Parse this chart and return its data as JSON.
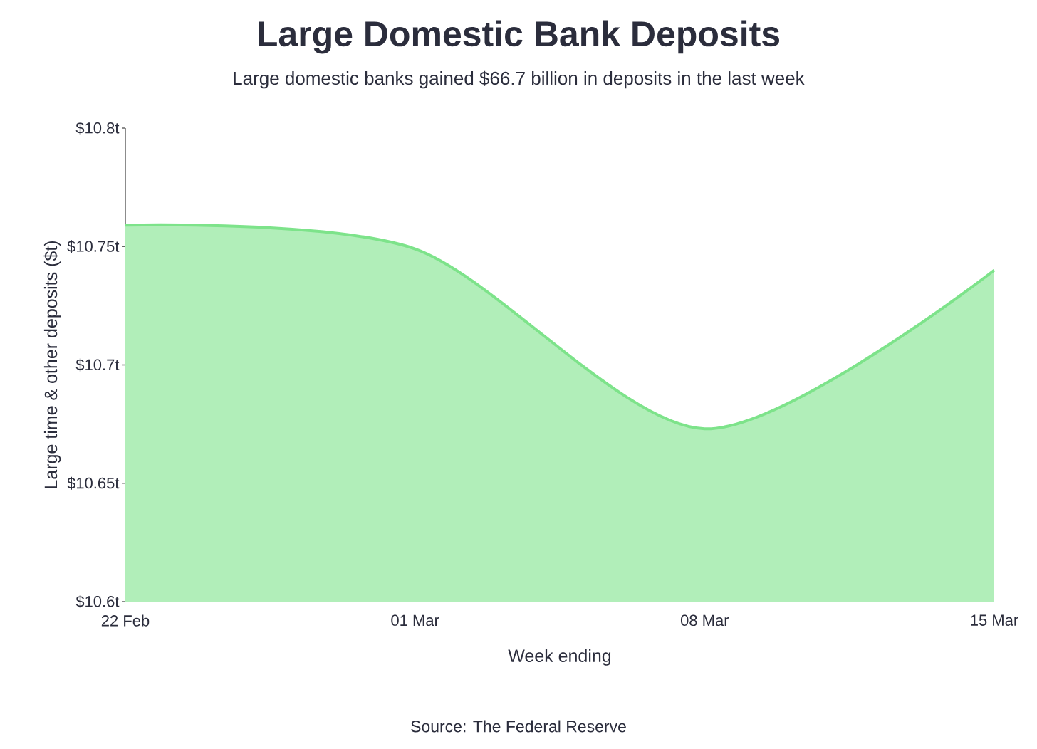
{
  "chart_data": {
    "type": "area",
    "title": "Large Domestic Bank Deposits",
    "subtitle": "Large domestic banks gained $66.7 billion in deposits in the last week",
    "xlabel": "Week ending",
    "ylabel": "Large time & other deposits ($t)",
    "annotations": [
      "Source: The Federal Reserve"
    ],
    "categories": [
      "22 Feb",
      "01 Mar",
      "08 Mar",
      "15 Mar"
    ],
    "series": [
      {
        "color": "#7de38a",
        "values": [
          10.759,
          10.749,
          10.673,
          10.74
        ]
      }
    ],
    "ylim": [
      10.6,
      10.8
    ],
    "yticks": [
      {
        "value": 10.6,
        "label": "$10.6t"
      },
      {
        "value": 10.65,
        "label": "$10.65t"
      },
      {
        "value": 10.7,
        "label": "$10.7t"
      },
      {
        "value": 10.75,
        "label": "$10.75t"
      },
      {
        "value": 10.8,
        "label": "$10.8t"
      }
    ],
    "grid": false
  }
}
